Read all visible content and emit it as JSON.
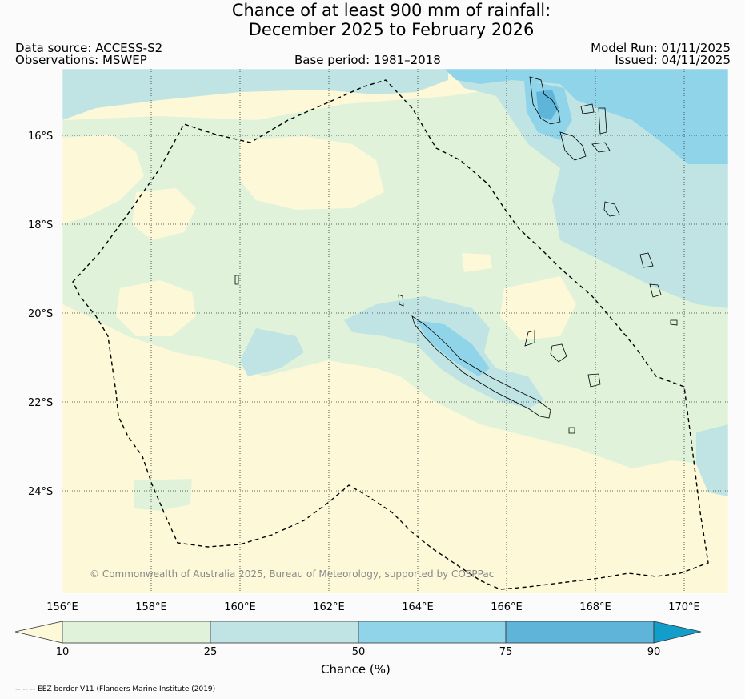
{
  "title": {
    "line1": "Chance of at least 900 mm of rainfall:",
    "line2": "December 2025 to February 2026"
  },
  "header": {
    "data_source": "Data source: ACCESS-S2",
    "observations": "Observations: MSWEP",
    "base_period": "Base period: 1981–2018",
    "model_run": "Model Run: 01/11/2025",
    "issued": "Issued: 04/11/2025"
  },
  "axes": {
    "lat_labels": [
      "16°S",
      "18°S",
      "20°S",
      "22°S",
      "24°S"
    ],
    "lon_labels": [
      "156°E",
      "158°E",
      "160°E",
      "162°E",
      "164°E",
      "166°E",
      "168°E",
      "170°E"
    ]
  },
  "copyright": "© Commonwealth of Australia 2025, Bureau of Meteorology, supported by COSPPac",
  "colorbar": {
    "title": "Chance (%)",
    "ticks": [
      "10",
      "25",
      "50",
      "75",
      "90"
    ],
    "colors": {
      "below_10": "#fdf8d8",
      "b10_25": "#e0f3da",
      "b25_50": "#c0e4e3",
      "b50_75": "#90d4ea",
      "b75_90": "#5fb5d9",
      "above_90": "#129ecb"
    }
  },
  "footnote": "-- -- -- EEZ border V11 (Flanders Marine Institute (2019)"
}
